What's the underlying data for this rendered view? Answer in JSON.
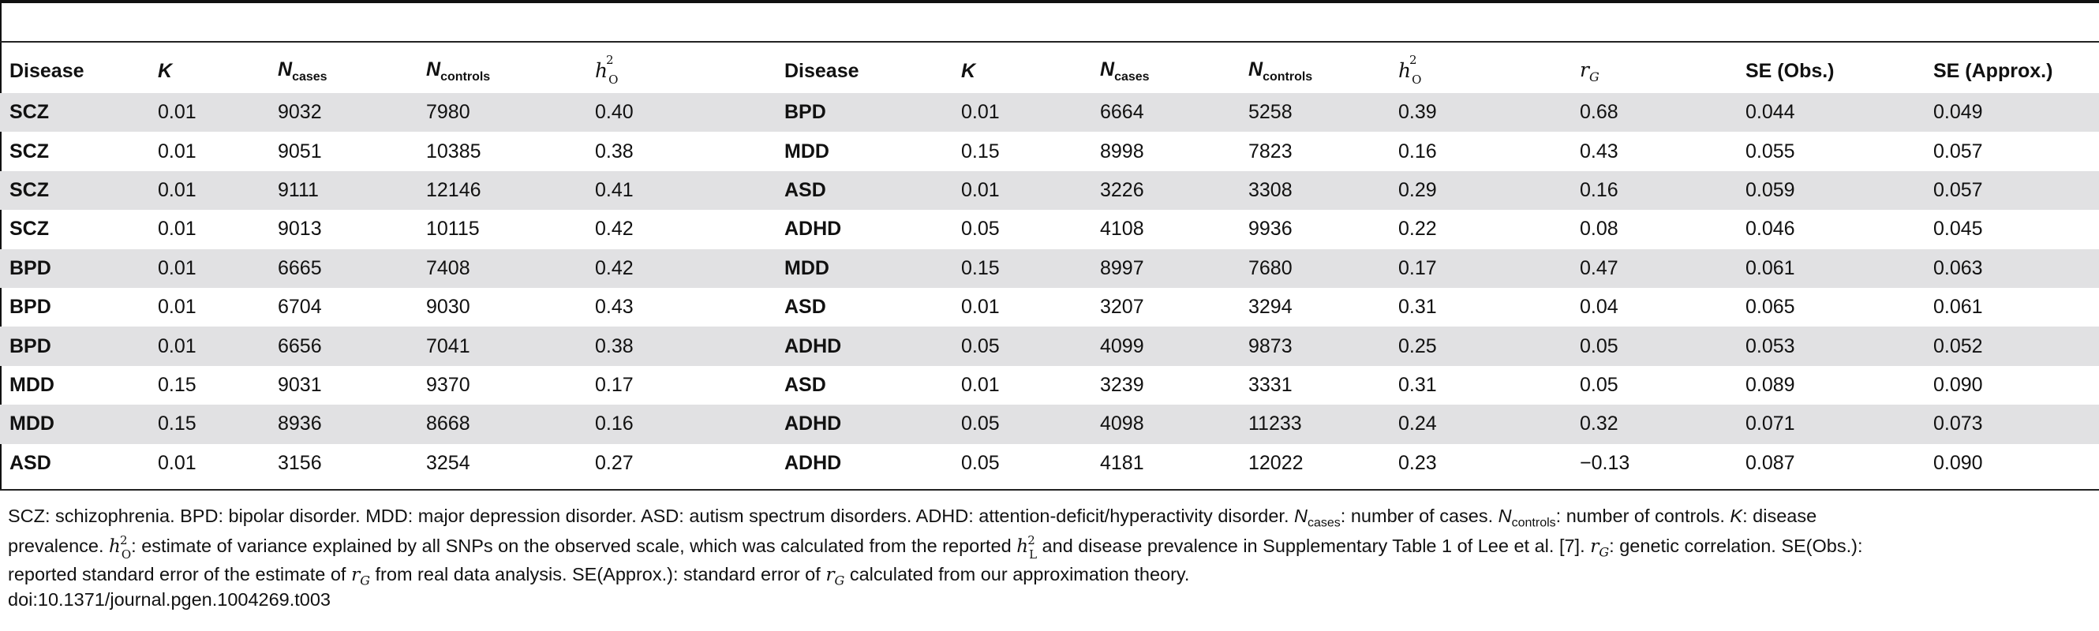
{
  "table": {
    "headers": [
      "Disease",
      "K",
      "N",
      "N",
      "h",
      "Disease",
      "K",
      "N",
      "N",
      "h",
      "r",
      "SE (Obs.)",
      "SE (Approx.)"
    ],
    "header_subs": {
      "ncases": "cases",
      "ncontrols": "controls",
      "h2_sup": "2",
      "h2_sub": "O",
      "rg_sub": "G"
    },
    "rows": [
      [
        "SCZ",
        "0.01",
        "9032",
        "7980",
        "0.40",
        "BPD",
        "0.01",
        "6664",
        "5258",
        "0.39",
        "0.68",
        "0.044",
        "0.049"
      ],
      [
        "SCZ",
        "0.01",
        "9051",
        "10385",
        "0.38",
        "MDD",
        "0.15",
        "8998",
        "7823",
        "0.16",
        "0.43",
        "0.055",
        "0.057"
      ],
      [
        "SCZ",
        "0.01",
        "9111",
        "12146",
        "0.41",
        "ASD",
        "0.01",
        "3226",
        "3308",
        "0.29",
        "0.16",
        "0.059",
        "0.057"
      ],
      [
        "SCZ",
        "0.01",
        "9013",
        "10115",
        "0.42",
        "ADHD",
        "0.05",
        "4108",
        "9936",
        "0.22",
        "0.08",
        "0.046",
        "0.045"
      ],
      [
        "BPD",
        "0.01",
        "6665",
        "7408",
        "0.42",
        "MDD",
        "0.15",
        "8997",
        "7680",
        "0.17",
        "0.47",
        "0.061",
        "0.063"
      ],
      [
        "BPD",
        "0.01",
        "6704",
        "9030",
        "0.43",
        "ASD",
        "0.01",
        "3207",
        "3294",
        "0.31",
        "0.04",
        "0.065",
        "0.061"
      ],
      [
        "BPD",
        "0.01",
        "6656",
        "7041",
        "0.38",
        "ADHD",
        "0.05",
        "4099",
        "9873",
        "0.25",
        "0.05",
        "0.053",
        "0.052"
      ],
      [
        "MDD",
        "0.15",
        "9031",
        "9370",
        "0.17",
        "ASD",
        "0.01",
        "3239",
        "3331",
        "0.31",
        "0.05",
        "0.089",
        "0.090"
      ],
      [
        "MDD",
        "0.15",
        "8936",
        "8668",
        "0.16",
        "ADHD",
        "0.05",
        "4098",
        "11233",
        "0.24",
        "0.32",
        "0.071",
        "0.073"
      ],
      [
        "ASD",
        "0.01",
        "3156",
        "3254",
        "0.27",
        "ADHD",
        "0.05",
        "4181",
        "12022",
        "0.23",
        "−0.13",
        "0.087",
        "0.090"
      ]
    ]
  },
  "footnote": {
    "line1": "SCZ: schizophrenia. BPD: bipolar disorder. MDD: major depression disorder. ASD: autism spectrum disorders. ADHD: attention-deficit/hyperactivity disorder. ",
    "ncases_def": ": number of cases. ",
    "ncontrols_def": ": number of controls. ",
    "k_def": ": disease",
    "line2a": "prevalence. ",
    "h2o_def": ": estimate of variance explained by all SNPs on the observed scale, which was calculated from the reported ",
    "h2l_after": " and disease prevalence in Supplementary Table 1 of Lee et al. [7]. ",
    "rg_def": ": genetic correlation. SE(Obs.):",
    "line3": "reported standard error of the estimate of ",
    "line3b": " from real data analysis. SE(Approx.): standard error of ",
    "line3c": " calculated from our approximation theory.",
    "h2l_sub": "L"
  },
  "doi": "doi:10.1371/journal.pgen.1004269.t003"
}
